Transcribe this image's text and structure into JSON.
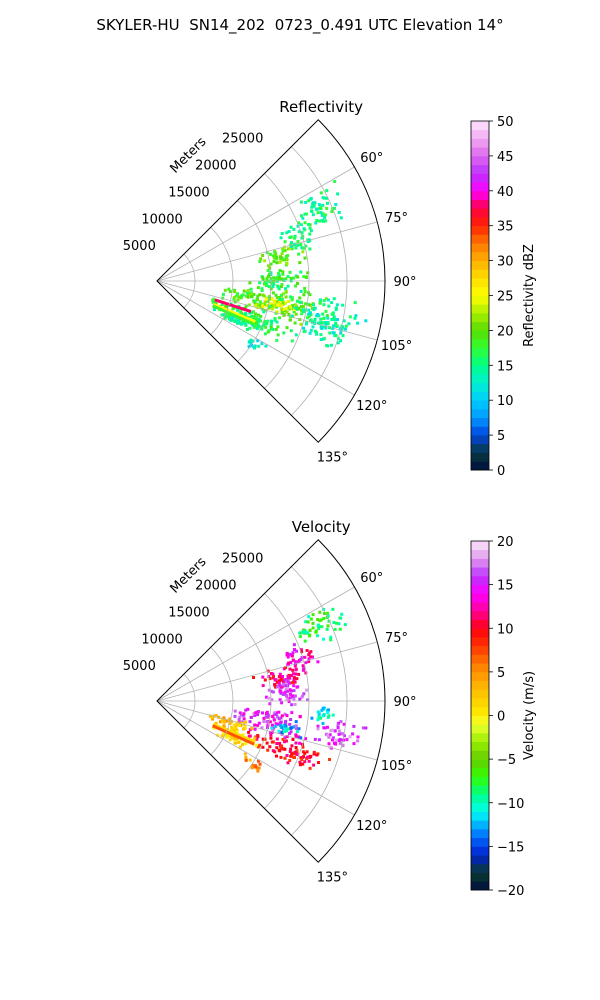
{
  "suptitle": "SKYLER-HU  SN14_202  0723_0.491 UTC Elevation 14°",
  "chart_data": [
    {
      "type": "heatmap",
      "projection": "polar-sector",
      "title": "Reflectivity",
      "theta_range_deg": [
        45,
        135
      ],
      "range_max_m": 30000,
      "range_label": "Meters",
      "range_ticks": [
        5000,
        10000,
        15000,
        20000,
        25000
      ],
      "range_tick_labels": [
        "5000",
        "10000",
        "15000",
        "20000",
        "25000"
      ],
      "theta_ticks_deg": [
        60,
        75,
        90,
        105,
        120,
        135
      ],
      "theta_tick_labels": [
        "60°",
        "75°",
        "90°",
        "105°",
        "120°",
        "135°"
      ],
      "grid": true,
      "colorbar": {
        "label": "Reflectivity dBZ",
        "range": [
          0,
          50
        ],
        "ticks": [
          0,
          5,
          10,
          15,
          20,
          25,
          30,
          35,
          40,
          45,
          50
        ],
        "tick_labels": [
          "0",
          "5",
          "10",
          "15",
          "20",
          "25",
          "30",
          "35",
          "40",
          "45",
          "50"
        ]
      },
      "echo_regions": [
        {
          "az": [
            74,
            84
          ],
          "range": [
            13000,
            20000
          ],
          "value": 20
        },
        {
          "az": [
            67,
            80
          ],
          "range": [
            17000,
            22000
          ],
          "value": 16
        },
        {
          "az": [
            84,
            96
          ],
          "range": [
            12000,
            21000
          ],
          "value": 17
        },
        {
          "az": [
            94,
            108
          ],
          "range": [
            8000,
            24000
          ],
          "value": 19
        },
        {
          "az": [
            98,
            106
          ],
          "range": [
            13000,
            19000
          ],
          "value": 24
        },
        {
          "az": [
            105,
            118
          ],
          "range": [
            6000,
            20000
          ],
          "value": 17
        },
        {
          "az": [
            112,
            120
          ],
          "range": [
            8000,
            15000
          ],
          "value": 14
        },
        {
          "az": [
            60,
            72
          ],
          "range": [
            20000,
            27000
          ],
          "value": 15
        },
        {
          "az": [
            95,
            112
          ],
          "range": [
            18000,
            28000
          ],
          "value": 14
        },
        {
          "az": [
            120,
            126
          ],
          "range": [
            13000,
            17000
          ],
          "value": 12
        }
      ],
      "echo_streaks": [
        {
          "az": 108,
          "range": [
            8000,
            13000
          ],
          "value": 38
        },
        {
          "az": 112.5,
          "range": [
            8000,
            14000
          ],
          "value": 25
        },
        {
          "az": 114,
          "range": [
            8000,
            14000
          ],
          "value": 18
        }
      ]
    },
    {
      "type": "heatmap",
      "projection": "polar-sector",
      "title": "Velocity",
      "theta_range_deg": [
        45,
        135
      ],
      "range_max_m": 30000,
      "range_label": "Meters",
      "range_ticks": [
        5000,
        10000,
        15000,
        20000,
        25000
      ],
      "range_tick_labels": [
        "5000",
        "10000",
        "15000",
        "20000",
        "25000"
      ],
      "theta_ticks_deg": [
        60,
        75,
        90,
        105,
        120,
        135
      ],
      "theta_tick_labels": [
        "60°",
        "75°",
        "90°",
        "105°",
        "120°",
        "135°"
      ],
      "grid": true,
      "colorbar": {
        "label": "Velocity (m/s)",
        "range": [
          -20,
          20
        ],
        "ticks": [
          -20,
          -15,
          -10,
          -5,
          0,
          5,
          10,
          15,
          20
        ],
        "tick_labels": [
          "−20",
          "−15",
          "−10",
          "−5",
          "0",
          "5",
          "10",
          "15",
          "20"
        ]
      },
      "echo_regions": [
        {
          "az": [
            74,
            84
          ],
          "range": [
            13000,
            20000
          ],
          "value": 11
        },
        {
          "az": [
            80,
            88
          ],
          "range": [
            14000,
            20000
          ],
          "value": 15
        },
        {
          "az": [
            67,
            80
          ],
          "range": [
            17000,
            22000
          ],
          "value": 13
        },
        {
          "az": [
            84,
            92
          ],
          "range": [
            14000,
            20000
          ],
          "value": 16
        },
        {
          "az": [
            90,
            98
          ],
          "range": [
            20000,
            24000
          ],
          "value": -11
        },
        {
          "az": [
            94,
            108
          ],
          "range": [
            10000,
            20000
          ],
          "value": 15
        },
        {
          "az": [
            98,
            105
          ],
          "range": [
            15000,
            20000
          ],
          "value": -12
        },
        {
          "az": [
            102,
            112
          ],
          "range": [
            7000,
            14000
          ],
          "value": 3
        },
        {
          "az": [
            105,
            116
          ],
          "range": [
            12000,
            24000
          ],
          "value": 10
        },
        {
          "az": [
            110,
            120
          ],
          "range": [
            8000,
            15000
          ],
          "value": 1
        },
        {
          "az": [
            96,
            106
          ],
          "range": [
            20000,
            28000
          ],
          "value": 16
        },
        {
          "az": [
            60,
            72
          ],
          "range": [
            20000,
            27000
          ],
          "value": -8
        },
        {
          "az": [
            120,
            126
          ],
          "range": [
            13000,
            17000
          ],
          "value": 5
        }
      ],
      "echo_streaks": [
        {
          "az": 112.5,
          "range": [
            8000,
            14000
          ],
          "value": 1
        },
        {
          "az": 114,
          "range": [
            8000,
            14000
          ],
          "value": 7
        }
      ]
    }
  ]
}
